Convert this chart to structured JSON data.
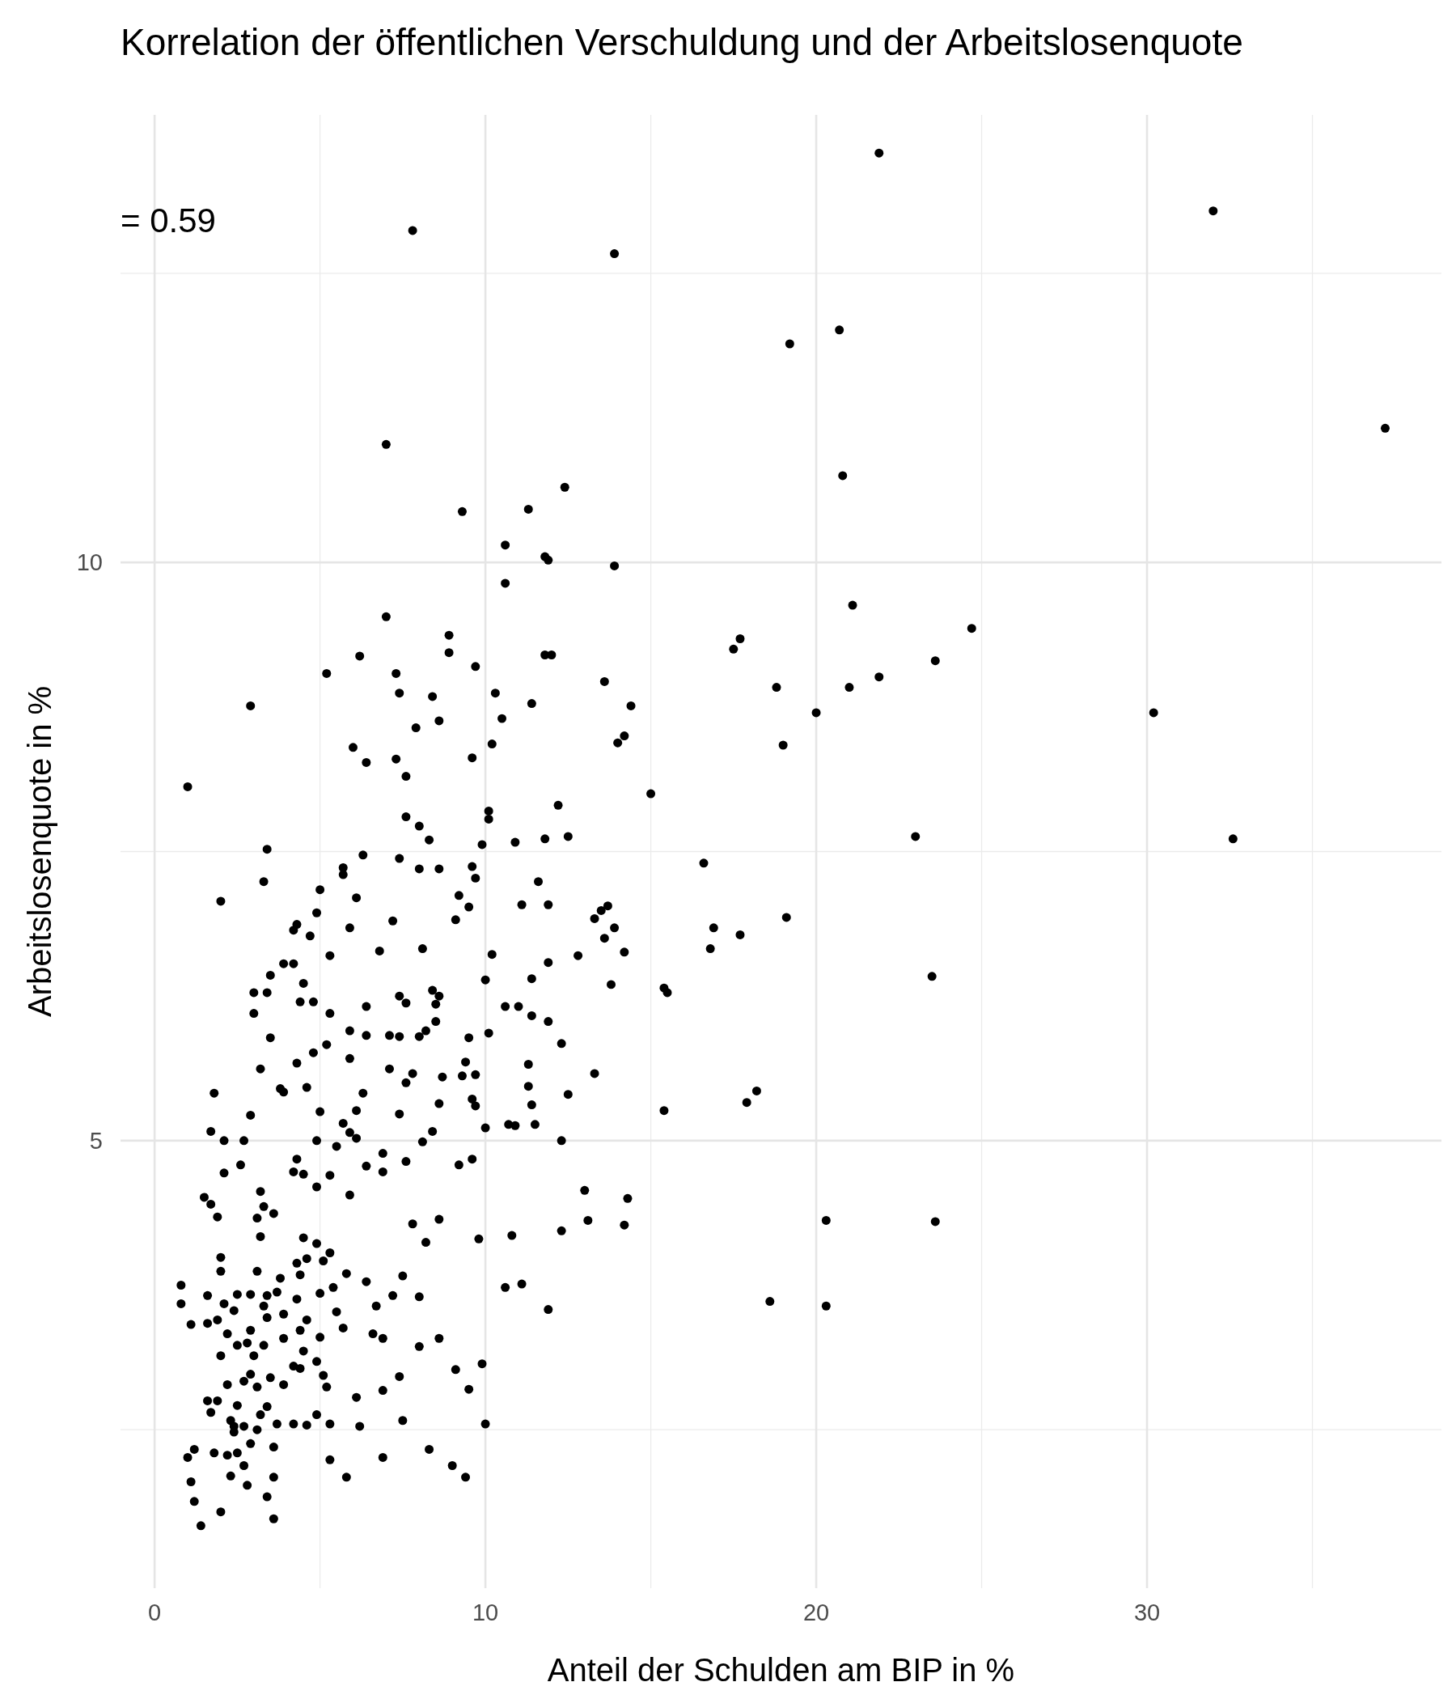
{
  "chart_data": {
    "type": "scatter",
    "title": "Korrelation der öffentlichen Verschuldung und der Arbeitslosenquote",
    "xlabel": "Anteil der Schulden am BIP in %",
    "ylabel": "Arbeitslosenquote in %",
    "annotations": [
      "= 0.59"
    ],
    "xlim": [
      -1.03,
      38.9
    ],
    "ylim": [
      1.13,
      13.87
    ],
    "xticks": [
      0,
      10,
      20,
      30
    ],
    "yticks": [
      5,
      10
    ],
    "grid": true,
    "marker": "circle",
    "series": [
      {
        "color": "#000000",
        "x": [
          21.9,
          32.0,
          7.8,
          13.9,
          19.2,
          20.7,
          37.2,
          7.0,
          20.8,
          12.4,
          9.3,
          11.3,
          10.6,
          11.8,
          11.9,
          13.9,
          10.6,
          21.1,
          7.0,
          24.7,
          8.9,
          17.7,
          17.5,
          8.9,
          11.8,
          12.0,
          6.2,
          23.6,
          9.7,
          5.2,
          7.3,
          21.9,
          13.6,
          18.8,
          21.0,
          7.4,
          10.3,
          8.4,
          11.4,
          2.9,
          14.4,
          30.2,
          20.0,
          10.5,
          8.6,
          7.9,
          14.2,
          14.0,
          10.2,
          6.0,
          19.0,
          6.4,
          7.3,
          9.6,
          7.6,
          15.0,
          1.0,
          12.2,
          10.1,
          7.6,
          10.1,
          8.0,
          23.0,
          32.6,
          11.8,
          12.5,
          8.3,
          10.9,
          9.9,
          3.4,
          6.3,
          7.4,
          16.6,
          5.7,
          9.6,
          8.0,
          8.6,
          5.7,
          9.7,
          3.3,
          11.6,
          5.0,
          6.1,
          2.0,
          9.2,
          11.1,
          11.9,
          9.5,
          13.7,
          4.9,
          13.5,
          13.3,
          19.1,
          7.2,
          9.1,
          4.3,
          16.9,
          13.9,
          5.9,
          4.2,
          17.7,
          13.6,
          4.7,
          16.8,
          8.1,
          6.8,
          14.2,
          12.8,
          10.2,
          5.3,
          3.9,
          4.2,
          11.9,
          3.5,
          23.5,
          10.0,
          11.4,
          4.5,
          13.8,
          15.4,
          15.5,
          3.0,
          3.4,
          8.4,
          8.6,
          7.4,
          4.8,
          4.4,
          7.6,
          6.4,
          10.6,
          11.0,
          8.5,
          3.0,
          5.3,
          11.4,
          11.9,
          8.5,
          10.1,
          8.2,
          5.9,
          7.1,
          3.5,
          6.4,
          7.4,
          9.5,
          8.0,
          12.3,
          5.2,
          4.8,
          5.9,
          11.3,
          9.4,
          4.3,
          3.2,
          7.1,
          9.7,
          13.3,
          9.3,
          8.7,
          7.8,
          7.6,
          11.3,
          4.6,
          18.2,
          3.8,
          3.9,
          6.3,
          1.8,
          12.5,
          17.9,
          9.6,
          9.7,
          8.6,
          11.4,
          15.4,
          5.0,
          6.1,
          7.4,
          2.9,
          5.7,
          10.7,
          10.9,
          11.5,
          10.0,
          1.7,
          8.4,
          5.9,
          6.1,
          4.9,
          2.1,
          2.7,
          8.1,
          12.3,
          5.5,
          4.3,
          6.9,
          9.6,
          9.2,
          6.4,
          2.6,
          7.6,
          6.9,
          2.1,
          4.2,
          4.5,
          5.3,
          4.9,
          3.2,
          13.0,
          5.9,
          1.5,
          14.3,
          1.7,
          3.3,
          3.6,
          1.9,
          3.1,
          20.3,
          23.6,
          8.6,
          13.1,
          7.8,
          14.2,
          12.3,
          3.2,
          9.8,
          10.8,
          8.2,
          4.5,
          4.9,
          2.0,
          5.3,
          4.6,
          5.1,
          4.3,
          3.1,
          2.0,
          7.5,
          5.8,
          4.4,
          3.8,
          0.8,
          6.4,
          11.1,
          10.6,
          5.0,
          5.4,
          7.2,
          8.0,
          1.6,
          2.5,
          2.9,
          3.4,
          3.7,
          4.3,
          0.8,
          18.6,
          2.1,
          2.4,
          3.3,
          6.7,
          11.9,
          20.3,
          5.5,
          3.9,
          3.4,
          4.6,
          1.6,
          1.1,
          1.9,
          5.7,
          2.9,
          4.4,
          2.2,
          6.6,
          6.9,
          8.6,
          3.9,
          5.0,
          2.8,
          2.5,
          8.0,
          4.5,
          3.3,
          2.0,
          3.0,
          4.9,
          9.9,
          4.2,
          4.4,
          9.1,
          5.1,
          7.4,
          2.9,
          2.7,
          3.5,
          3.9,
          3.1,
          2.2,
          5.2,
          9.5,
          6.9,
          6.1,
          1.6,
          1.9,
          2.5,
          3.4,
          1.7,
          2.3,
          3.2,
          4.9,
          2.4,
          2.7,
          3.7,
          4.2,
          4.6,
          5.3,
          6.2,
          7.5,
          10.0,
          3.1,
          2.4,
          2.9,
          3.6,
          8.3,
          6.9,
          1.0,
          1.2,
          1.8,
          2.2,
          2.5,
          5.3,
          9.0,
          2.7,
          2.3,
          3.6,
          5.8,
          9.4,
          1.1,
          2.8,
          3.4,
          1.2,
          2.0,
          3.6,
          1.4
        ],
        "values": [
          13.54,
          13.04,
          12.87,
          12.67,
          11.89,
          12.01,
          11.16,
          11.02,
          10.75,
          10.65,
          10.44,
          10.46,
          10.15,
          10.05,
          10.02,
          9.97,
          9.82,
          9.63,
          9.53,
          9.43,
          9.37,
          9.34,
          9.25,
          9.22,
          9.2,
          9.2,
          9.19,
          9.15,
          9.1,
          9.04,
          9.04,
          9.01,
          8.97,
          8.92,
          8.92,
          8.87,
          8.87,
          8.84,
          8.78,
          8.76,
          8.76,
          8.7,
          8.7,
          8.65,
          8.63,
          8.57,
          8.5,
          8.44,
          8.43,
          8.4,
          8.42,
          8.27,
          8.3,
          8.31,
          8.15,
          8.0,
          8.06,
          7.9,
          7.85,
          7.8,
          7.78,
          7.72,
          7.63,
          7.61,
          7.61,
          7.63,
          7.6,
          7.58,
          7.56,
          7.52,
          7.47,
          7.44,
          7.4,
          7.36,
          7.37,
          7.35,
          7.35,
          7.3,
          7.27,
          7.24,
          7.24,
          7.17,
          7.1,
          7.07,
          7.12,
          7.04,
          7.04,
          7.02,
          7.03,
          6.97,
          6.99,
          6.92,
          6.93,
          6.9,
          6.91,
          6.87,
          6.84,
          6.84,
          6.84,
          6.82,
          6.78,
          6.75,
          6.77,
          6.66,
          6.66,
          6.64,
          6.63,
          6.6,
          6.61,
          6.6,
          6.53,
          6.53,
          6.54,
          6.43,
          6.42,
          6.39,
          6.4,
          6.36,
          6.35,
          6.32,
          6.28,
          6.28,
          6.28,
          6.3,
          6.25,
          6.25,
          6.2,
          6.2,
          6.19,
          6.16,
          6.16,
          6.16,
          6.18,
          6.1,
          6.1,
          6.08,
          6.03,
          6.03,
          5.93,
          5.95,
          5.95,
          5.91,
          5.89,
          5.91,
          5.9,
          5.89,
          5.9,
          5.84,
          5.83,
          5.76,
          5.71,
          5.66,
          5.68,
          5.67,
          5.62,
          5.62,
          5.57,
          5.58,
          5.56,
          5.55,
          5.58,
          5.5,
          5.47,
          5.46,
          5.43,
          5.45,
          5.42,
          5.41,
          5.41,
          5.4,
          5.33,
          5.36,
          5.3,
          5.32,
          5.31,
          5.26,
          5.25,
          5.26,
          5.23,
          5.22,
          5.15,
          5.14,
          5.13,
          5.14,
          5.11,
          5.08,
          5.08,
          5.07,
          5.02,
          5.0,
          5.0,
          5.0,
          4.99,
          5.0,
          4.95,
          4.84,
          4.89,
          4.84,
          4.79,
          4.78,
          4.79,
          4.82,
          4.73,
          4.72,
          4.73,
          4.71,
          4.7,
          4.6,
          4.56,
          4.57,
          4.53,
          4.51,
          4.5,
          4.45,
          4.43,
          4.37,
          4.34,
          4.33,
          4.31,
          4.3,
          4.32,
          4.31,
          4.28,
          4.27,
          4.22,
          4.17,
          4.15,
          4.18,
          4.12,
          4.16,
          4.11,
          3.99,
          4.03,
          3.98,
          3.96,
          3.94,
          3.87,
          3.87,
          3.83,
          3.85,
          3.84,
          3.81,
          3.75,
          3.78,
          3.76,
          3.73,
          3.68,
          3.73,
          3.66,
          3.65,
          3.66,
          3.67,
          3.67,
          3.66,
          3.69,
          3.63,
          3.59,
          3.61,
          3.59,
          3.53,
          3.57,
          3.57,
          3.54,
          3.57,
          3.52,
          3.5,
          3.47,
          3.45,
          3.42,
          3.41,
          3.45,
          3.38,
          3.36,
          3.36,
          3.33,
          3.33,
          3.29,
          3.29,
          3.29,
          3.3,
          3.25,
          3.23,
          3.22,
          3.18,
          3.23,
          3.14,
          3.14,
          3.09,
          3.07,
          3.05,
          3.03,
          3.02,
          2.97,
          2.96,
          2.98,
          2.92,
          2.95,
          2.89,
          2.87,
          2.89,
          2.87,
          2.85,
          2.84,
          2.78,
          2.75,
          2.75,
          2.71,
          2.7,
          2.65,
          2.58,
          2.63,
          2.63,
          2.53,
          2.53,
          2.55,
          2.55,
          2.54,
          2.55,
          2.53,
          2.58,
          2.55,
          2.5,
          2.48,
          2.38,
          2.35,
          2.33,
          2.26,
          2.26,
          2.33,
          2.3,
          2.28,
          2.3,
          2.24,
          2.19,
          2.19,
          2.1,
          2.09,
          2.09,
          2.09,
          2.05,
          2.02,
          1.92,
          1.88,
          1.79,
          1.73,
          1.67
        ]
      }
    ]
  }
}
